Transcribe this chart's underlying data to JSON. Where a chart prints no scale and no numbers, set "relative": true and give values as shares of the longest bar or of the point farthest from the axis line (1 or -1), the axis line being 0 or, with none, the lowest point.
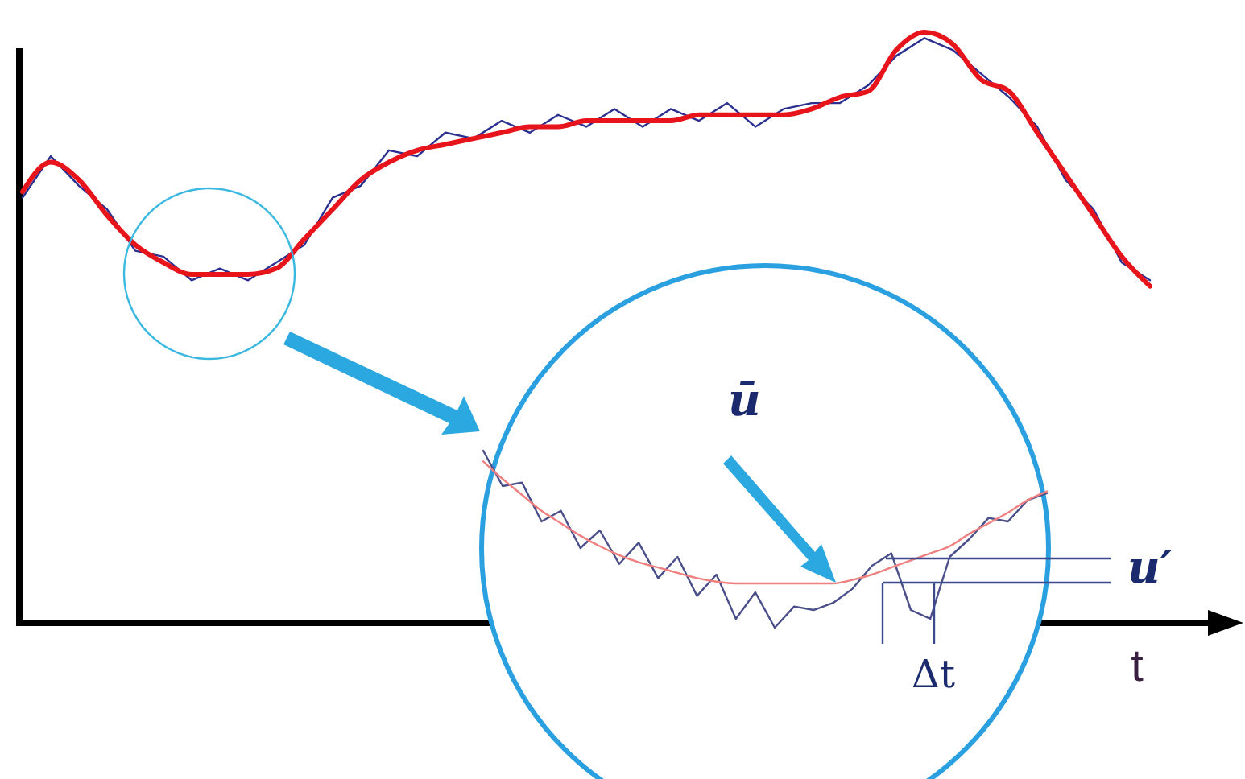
{
  "chart_data": [
    {
      "type": "line",
      "relative": true,
      "xlabel": "t",
      "categories": [
        null,
        null,
        null,
        null,
        null,
        null,
        null,
        null,
        null,
        null,
        null,
        null,
        null,
        null,
        null,
        null,
        null,
        null,
        null,
        null,
        null,
        null,
        null,
        null,
        null,
        null,
        null,
        null,
        null,
        null,
        null,
        null,
        null,
        null,
        null,
        null,
        null,
        null,
        null,
        null,
        null
      ],
      "series": [
        {
          "color": "#2b2f8f",
          "values": [
            0.72,
            0.79,
            0.74,
            0.7,
            0.63,
            0.62,
            0.58,
            0.6,
            0.58,
            0.61,
            0.64,
            0.72,
            0.74,
            0.8,
            0.79,
            0.83,
            0.82,
            0.85,
            0.83,
            0.86,
            0.84,
            0.87,
            0.84,
            0.87,
            0.85,
            0.88,
            0.84,
            0.87,
            0.88,
            0.88,
            0.91,
            0.96,
            0.99,
            0.97,
            0.93,
            0.89,
            0.84,
            0.75,
            0.7,
            0.61,
            0.58
          ]
        },
        {
          "color": "#e8141c",
          "values": [
            0.73,
            0.78,
            0.75,
            0.69,
            0.64,
            0.61,
            0.59,
            0.59,
            0.59,
            0.6,
            0.65,
            0.7,
            0.75,
            0.78,
            0.8,
            0.81,
            0.82,
            0.83,
            0.84,
            0.84,
            0.85,
            0.85,
            0.85,
            0.85,
            0.86,
            0.86,
            0.86,
            0.86,
            0.87,
            0.89,
            0.9,
            0.97,
            1.0,
            0.98,
            0.92,
            0.9,
            0.83,
            0.76,
            0.69,
            0.62,
            0.57
          ]
        }
      ]
    },
    {
      "type": "line",
      "relative": true,
      "annotations": [
        "ū",
        "u′",
        "Δt"
      ],
      "categories": [
        null,
        null,
        null,
        null,
        null,
        null,
        null,
        null,
        null,
        null,
        null,
        null,
        null,
        null,
        null,
        null,
        null,
        null,
        null,
        null,
        null,
        null,
        null,
        null,
        null,
        null,
        null,
        null,
        null,
        null
      ],
      "series": [
        {
          "color": "#4a4f8a",
          "values": [
            1.0,
            0.8,
            0.82,
            0.6,
            0.66,
            0.45,
            0.55,
            0.36,
            0.48,
            0.28,
            0.4,
            0.18,
            0.3,
            0.05,
            0.2,
            0.0,
            0.12,
            0.1,
            0.14,
            0.22,
            0.35,
            0.42,
            0.1,
            0.05,
            0.4,
            0.5,
            0.62,
            0.6,
            0.72,
            0.76
          ]
        },
        {
          "color": "#f08080",
          "values": [
            0.94,
            0.84,
            0.75,
            0.66,
            0.59,
            0.52,
            0.46,
            0.41,
            0.37,
            0.34,
            0.31,
            0.28,
            0.26,
            0.25,
            0.25,
            0.25,
            0.25,
            0.25,
            0.25,
            0.27,
            0.3,
            0.34,
            0.38,
            0.42,
            0.46,
            0.53,
            0.59,
            0.65,
            0.72,
            0.77
          ]
        }
      ]
    }
  ]
}
